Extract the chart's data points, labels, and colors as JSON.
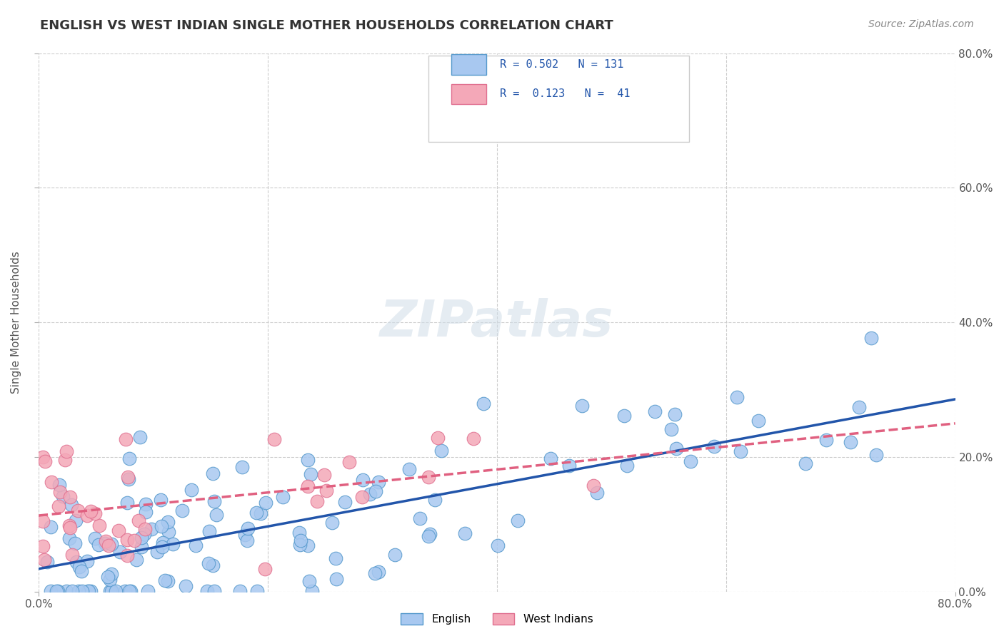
{
  "title": "ENGLISH VS WEST INDIAN SINGLE MOTHER HOUSEHOLDS CORRELATION CHART",
  "source": "Source: ZipAtlas.com",
  "ylabel": "Single Mother Households",
  "xlabel": "",
  "xlim": [
    0.0,
    0.8
  ],
  "ylim": [
    0.0,
    0.8
  ],
  "english_color": "#a8c8f0",
  "english_edge": "#5599cc",
  "west_indian_color": "#f4a8b8",
  "west_indian_edge": "#e07090",
  "trend_english_color": "#2255aa",
  "trend_west_indian_color": "#e06080",
  "grid_color": "#cccccc",
  "background_color": "#ffffff",
  "watermark": "ZIPatlas",
  "R_english": 0.502,
  "N_english": 131,
  "R_west_indian": 0.123,
  "N_west_indian": 41,
  "english_seed": 42,
  "west_indian_seed": 7
}
